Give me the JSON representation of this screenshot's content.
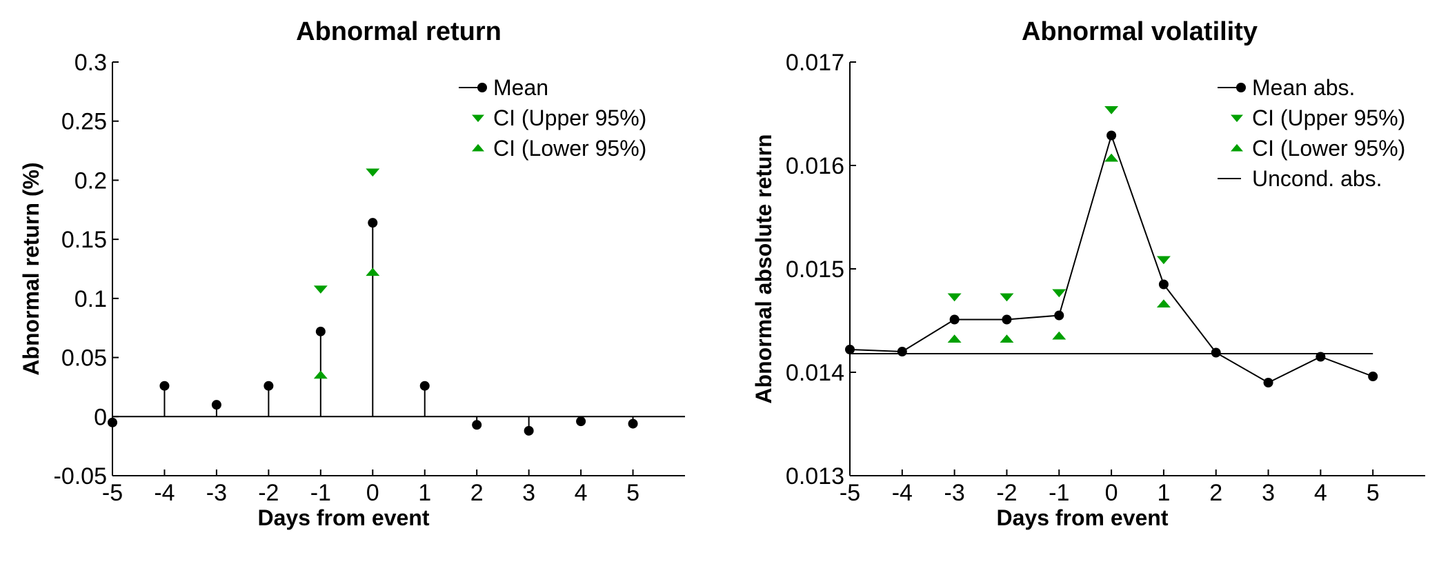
{
  "colors": {
    "mean": "#000000",
    "ci": "#00a000",
    "axis": "#000000"
  },
  "chart_data": [
    {
      "type": "stem",
      "title": "Abnormal return",
      "xlabel": "Days from event",
      "ylabel": "Abnormal return (%)",
      "xlim": [
        -5,
        6
      ],
      "ylim": [
        -0.05,
        0.3
      ],
      "xticks": [
        -5,
        -4,
        -3,
        -2,
        -1,
        0,
        1,
        2,
        3,
        4,
        5
      ],
      "xtick_labels": [
        "-5",
        "-4",
        "-3",
        "-2",
        "-1",
        "0",
        "1",
        "2",
        "3",
        "4",
        "5"
      ],
      "yticks": [
        -0.05,
        0,
        0.05,
        0.1,
        0.15,
        0.2,
        0.25,
        0.3
      ],
      "ytick_labels": [
        "-0.05",
        "0",
        "0.05",
        "0.1",
        "0.15",
        "0.2",
        "0.25",
        "0.3"
      ],
      "baseline": 0,
      "legend_position": "top-right",
      "series": [
        {
          "name": "Mean",
          "marker": "circle",
          "style": "stem",
          "x": [
            -5,
            -4,
            -3,
            -2,
            -1,
            0,
            1,
            2,
            3,
            4,
            5
          ],
          "y": [
            -0.005,
            0.026,
            0.01,
            0.026,
            0.072,
            0.164,
            0.026,
            -0.007,
            -0.012,
            -0.004,
            -0.006
          ]
        },
        {
          "name": "CI (Upper 95%)",
          "marker": "triangle-down",
          "style": "markers",
          "x": [
            -1,
            0
          ],
          "y": [
            0.108,
            0.207
          ]
        },
        {
          "name": "CI (Lower 95%)",
          "marker": "triangle-up",
          "style": "markers",
          "x": [
            -1,
            0
          ],
          "y": [
            0.035,
            0.122
          ]
        }
      ]
    },
    {
      "type": "line",
      "title": "Abnormal volatility",
      "xlabel": "Days from event",
      "ylabel": "Abnormal absolute return",
      "xlim": [
        -5,
        6
      ],
      "ylim": [
        0.013,
        0.017
      ],
      "xticks": [
        -5,
        -4,
        -3,
        -2,
        -1,
        0,
        1,
        2,
        3,
        4,
        5
      ],
      "xtick_labels": [
        "-5",
        "-4",
        "-3",
        "-2",
        "-1",
        "0",
        "1",
        "2",
        "3",
        "4",
        "5"
      ],
      "yticks": [
        0.013,
        0.014,
        0.015,
        0.016,
        0.017
      ],
      "ytick_labels": [
        "0.013",
        "0.014",
        "0.015",
        "0.016",
        "0.017"
      ],
      "legend_position": "top-right",
      "series": [
        {
          "name": "Mean abs.",
          "marker": "circle",
          "style": "line",
          "x": [
            -5,
            -4,
            -3,
            -2,
            -1,
            0,
            1,
            2,
            3,
            4,
            5
          ],
          "y": [
            0.01422,
            0.0142,
            0.01451,
            0.01451,
            0.01455,
            0.01629,
            0.01485,
            0.01419,
            0.0139,
            0.01415,
            0.01396
          ]
        },
        {
          "name": "CI (Upper 95%)",
          "marker": "triangle-down",
          "style": "markers",
          "x": [
            -3,
            -2,
            -1,
            0,
            1
          ],
          "y": [
            0.01473,
            0.01473,
            0.01477,
            0.01654,
            0.01509
          ]
        },
        {
          "name": "CI (Lower 95%)",
          "marker": "triangle-up",
          "style": "markers",
          "x": [
            -3,
            -2,
            -1,
            0,
            1
          ],
          "y": [
            0.01432,
            0.01432,
            0.01435,
            0.01607,
            0.01466
          ]
        },
        {
          "name": "Uncond. abs.",
          "marker": "none",
          "style": "hline",
          "x": [
            -5,
            5
          ],
          "y": [
            0.01418,
            0.01418
          ]
        }
      ]
    }
  ]
}
